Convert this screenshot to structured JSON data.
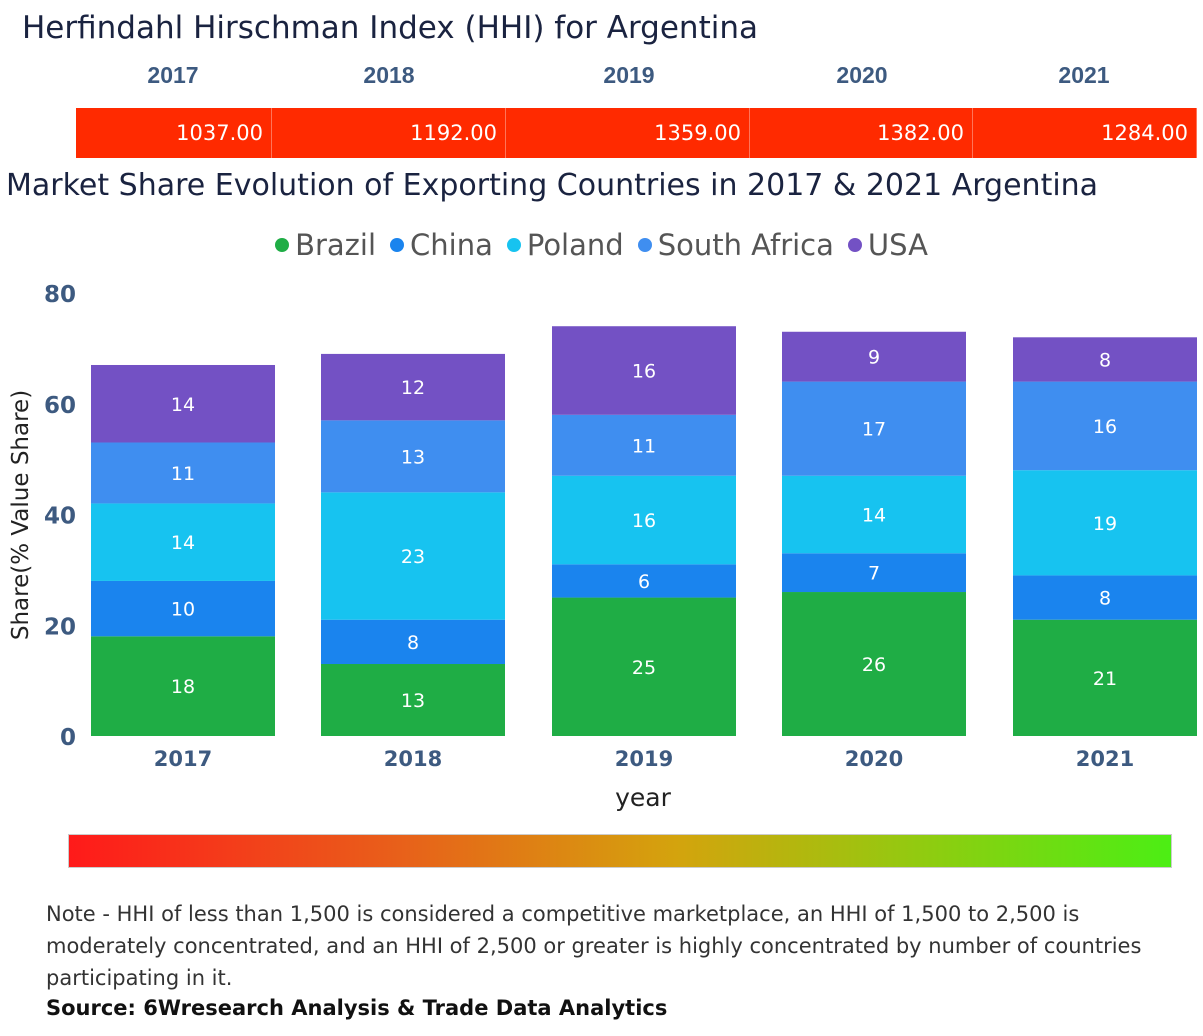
{
  "hhi": {
    "title": "Herfindahl Hirschman Index (HHI) for Argentina",
    "years": [
      "2017",
      "2018",
      "2019",
      "2020",
      "2021"
    ],
    "values": [
      "1037.00",
      "1192.00",
      "1359.00",
      "1382.00",
      "1284.00"
    ],
    "color": "#ff2a00"
  },
  "chart_data": {
    "type": "bar",
    "stacked": true,
    "title": "Market Share Evolution of Exporting Countries in 2017 & 2021 Argentina",
    "xlabel": "year",
    "ylabel": "Share(% Value Share)",
    "ylim": [
      0,
      80
    ],
    "yticks": [
      "0",
      "20",
      "40",
      "60",
      "80"
    ],
    "categories": [
      "2017",
      "2018",
      "2019",
      "2020",
      "2021"
    ],
    "legend_position": "top",
    "grid": false,
    "series": [
      {
        "name": "Brazil",
        "color": "#1fad45",
        "values": [
          18,
          13,
          25,
          26,
          21
        ]
      },
      {
        "name": "China",
        "color": "#1a84ee",
        "values": [
          10,
          8,
          6,
          7,
          8
        ]
      },
      {
        "name": "Poland",
        "color": "#17c3f0",
        "values": [
          14,
          23,
          16,
          14,
          19
        ]
      },
      {
        "name": "South Africa",
        "color": "#3f8ef0",
        "values": [
          11,
          13,
          11,
          17,
          16
        ]
      },
      {
        "name": "USA",
        "color": "#7351c4",
        "values": [
          14,
          12,
          16,
          9,
          8
        ]
      }
    ]
  },
  "note": "Note - HHI of less than 1,500 is considered a competitive marketplace, an HHI of 1,500 to 2,500 is moderately concentrated, and an HHI of 2,500 or greater is highly concentrated by number of countries participating in it.",
  "source": "Source: 6Wresearch Analysis & Trade Data Analytics"
}
